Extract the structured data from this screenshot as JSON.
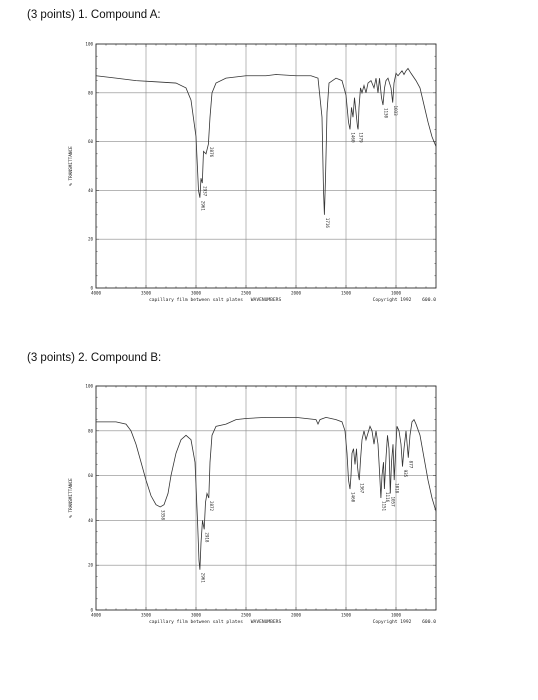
{
  "questions": [
    {
      "heading": "(3 points) 1. Compound A:",
      "spectrum": {
        "y_axis_title": "% TRANSMITTANCE",
        "y_ticks": [
          "100",
          "80",
          "60",
          "40",
          "20",
          "0"
        ],
        "x_ticks": [
          "4000",
          "3500",
          "3000",
          "2500",
          "2000",
          "1500",
          "1000"
        ],
        "x_caption": "capillary film between salt plates",
        "x_title": "WAVENUMBERS",
        "copyright": "Copyright 1992",
        "end_label": "600.0",
        "peaks": [
          {
            "label": "2961",
            "x": 2961,
            "y": 37
          },
          {
            "label": "2937",
            "x": 2937,
            "y": 43
          },
          {
            "label": "2876",
            "x": 2876,
            "y": 59
          },
          {
            "label": "1716",
            "x": 1716,
            "y": 30
          },
          {
            "label": "1460",
            "x": 1460,
            "y": 65
          },
          {
            "label": "1379",
            "x": 1379,
            "y": 65
          },
          {
            "label": "1130",
            "x": 1130,
            "y": 75
          },
          {
            "label": "1033",
            "x": 1033,
            "y": 76
          }
        ],
        "trace": [
          [
            4000,
            87
          ],
          [
            3800,
            86
          ],
          [
            3600,
            85
          ],
          [
            3400,
            84.5
          ],
          [
            3200,
            84
          ],
          [
            3100,
            82
          ],
          [
            3050,
            77
          ],
          [
            3000,
            62
          ],
          [
            2975,
            40
          ],
          [
            2961,
            37
          ],
          [
            2950,
            45
          ],
          [
            2937,
            43
          ],
          [
            2925,
            56
          ],
          [
            2900,
            55
          ],
          [
            2876,
            59
          ],
          [
            2860,
            70
          ],
          [
            2840,
            80
          ],
          [
            2800,
            84
          ],
          [
            2700,
            86
          ],
          [
            2500,
            87
          ],
          [
            2300,
            87
          ],
          [
            2200,
            87.5
          ],
          [
            2000,
            87
          ],
          [
            1850,
            87
          ],
          [
            1780,
            86
          ],
          [
            1740,
            70
          ],
          [
            1725,
            40
          ],
          [
            1716,
            30
          ],
          [
            1705,
            45
          ],
          [
            1690,
            72
          ],
          [
            1670,
            84
          ],
          [
            1600,
            86
          ],
          [
            1540,
            85
          ],
          [
            1500,
            79
          ],
          [
            1475,
            68
          ],
          [
            1460,
            65
          ],
          [
            1445,
            74
          ],
          [
            1430,
            70
          ],
          [
            1415,
            78
          ],
          [
            1400,
            72
          ],
          [
            1385,
            66
          ],
          [
            1379,
            65
          ],
          [
            1370,
            74
          ],
          [
            1355,
            82
          ],
          [
            1340,
            80
          ],
          [
            1320,
            83
          ],
          [
            1300,
            80
          ],
          [
            1280,
            84
          ],
          [
            1250,
            85
          ],
          [
            1220,
            82
          ],
          [
            1200,
            86
          ],
          [
            1180,
            80
          ],
          [
            1165,
            86
          ],
          [
            1145,
            78
          ],
          [
            1130,
            75
          ],
          [
            1115,
            82
          ],
          [
            1100,
            85
          ],
          [
            1080,
            86
          ],
          [
            1050,
            82
          ],
          [
            1033,
            76
          ],
          [
            1020,
            84
          ],
          [
            1000,
            88
          ],
          [
            980,
            87
          ],
          [
            960,
            88
          ],
          [
            940,
            89
          ],
          [
            920,
            87.5
          ],
          [
            900,
            89
          ],
          [
            880,
            90
          ],
          [
            850,
            88
          ],
          [
            800,
            85
          ],
          [
            760,
            82
          ],
          [
            720,
            75
          ],
          [
            680,
            68
          ],
          [
            640,
            62
          ],
          [
            600,
            58
          ]
        ]
      }
    },
    {
      "heading": "(3 points) 2. Compound B:",
      "spectrum": {
        "y_axis_title": "% TRANSMITTANCE",
        "y_ticks": [
          "100",
          "80",
          "60",
          "40",
          "20",
          "0"
        ],
        "x_ticks": [
          "4000",
          "3500",
          "3000",
          "2500",
          "2000",
          "1500",
          "1000"
        ],
        "x_caption": "capillary film between salt plates",
        "x_title": "WAVENUMBERS",
        "copyright": "Copyright 1992",
        "end_label": "600.0",
        "peaks": [
          {
            "label": "3358",
            "x": 3358,
            "y": 46
          },
          {
            "label": "2961",
            "x": 2961,
            "y": 18
          },
          {
            "label": "2918",
            "x": 2918,
            "y": 36
          },
          {
            "label": "2872",
            "x": 2872,
            "y": 50
          },
          {
            "label": "1460",
            "x": 1460,
            "y": 54
          },
          {
            "label": "1367",
            "x": 1367,
            "y": 58
          },
          {
            "label": "1151",
            "x": 1151,
            "y": 50
          },
          {
            "label": "1116",
            "x": 1116,
            "y": 54
          },
          {
            "label": "1057",
            "x": 1057,
            "y": 52
          },
          {
            "label": "1018",
            "x": 1018,
            "y": 58
          },
          {
            "label": "935",
            "x": 935,
            "y": 64
          },
          {
            "label": "877",
            "x": 877,
            "y": 68
          }
        ],
        "trace": [
          [
            4000,
            84
          ],
          [
            3900,
            84
          ],
          [
            3800,
            84
          ],
          [
            3700,
            83
          ],
          [
            3650,
            80
          ],
          [
            3600,
            74
          ],
          [
            3550,
            66
          ],
          [
            3500,
            58
          ],
          [
            3450,
            51
          ],
          [
            3400,
            47
          ],
          [
            3358,
            46
          ],
          [
            3320,
            47
          ],
          [
            3280,
            52
          ],
          [
            3250,
            60
          ],
          [
            3200,
            70
          ],
          [
            3150,
            76
          ],
          [
            3100,
            78
          ],
          [
            3050,
            76
          ],
          [
            3010,
            66
          ],
          [
            2985,
            40
          ],
          [
            2970,
            22
          ],
          [
            2961,
            18
          ],
          [
            2950,
            30
          ],
          [
            2935,
            40
          ],
          [
            2918,
            36
          ],
          [
            2905,
            48
          ],
          [
            2890,
            52
          ],
          [
            2872,
            50
          ],
          [
            2860,
            66
          ],
          [
            2840,
            78
          ],
          [
            2800,
            82
          ],
          [
            2700,
            83
          ],
          [
            2600,
            85
          ],
          [
            2500,
            85.5
          ],
          [
            2300,
            86
          ],
          [
            2100,
            86
          ],
          [
            2000,
            86
          ],
          [
            1900,
            85.5
          ],
          [
            1800,
            85
          ],
          [
            1780,
            83
          ],
          [
            1760,
            85
          ],
          [
            1700,
            86
          ],
          [
            1600,
            85
          ],
          [
            1540,
            84
          ],
          [
            1510,
            80
          ],
          [
            1490,
            70
          ],
          [
            1475,
            58
          ],
          [
            1460,
            54
          ],
          [
            1450,
            60
          ],
          [
            1440,
            70
          ],
          [
            1425,
            72
          ],
          [
            1410,
            65
          ],
          [
            1395,
            72
          ],
          [
            1385,
            64
          ],
          [
            1375,
            60
          ],
          [
            1367,
            58
          ],
          [
            1355,
            67
          ],
          [
            1340,
            76
          ],
          [
            1320,
            80
          ],
          [
            1300,
            76
          ],
          [
            1280,
            79
          ],
          [
            1260,
            82
          ],
          [
            1240,
            80
          ],
          [
            1220,
            74
          ],
          [
            1200,
            80
          ],
          [
            1180,
            74
          ],
          [
            1165,
            62
          ],
          [
            1151,
            50
          ],
          [
            1140,
            60
          ],
          [
            1125,
            66
          ],
          [
            1116,
            54
          ],
          [
            1100,
            68
          ],
          [
            1085,
            78
          ],
          [
            1070,
            72
          ],
          [
            1057,
            52
          ],
          [
            1045,
            66
          ],
          [
            1030,
            74
          ],
          [
            1018,
            58
          ],
          [
            1005,
            70
          ],
          [
            990,
            82
          ],
          [
            970,
            80
          ],
          [
            950,
            74
          ],
          [
            935,
            64
          ],
          [
            920,
            72
          ],
          [
            900,
            80
          ],
          [
            877,
            68
          ],
          [
            860,
            78
          ],
          [
            840,
            84
          ],
          [
            820,
            85
          ],
          [
            800,
            83
          ],
          [
            760,
            78
          ],
          [
            720,
            68
          ],
          [
            680,
            58
          ],
          [
            640,
            50
          ],
          [
            600,
            44
          ]
        ]
      }
    }
  ]
}
